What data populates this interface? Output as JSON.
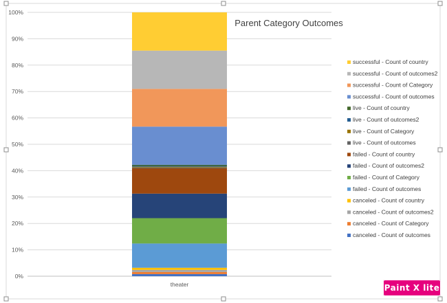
{
  "chart_data": {
    "type": "stacked-bar-100",
    "title": "Parent Category Outcomes",
    "categories": [
      "theater"
    ],
    "y_ticks": [
      "0%",
      "10%",
      "20%",
      "30%",
      "40%",
      "50%",
      "60%",
      "70%",
      "80%",
      "90%",
      "100%"
    ],
    "ylim": [
      0,
      100
    ],
    "grid": true,
    "legend_position": "right",
    "series": [
      {
        "name": "canceled - Count of outcomes",
        "values": [
          0.8
        ],
        "color": "#4472C4"
      },
      {
        "name": "canceled - Count of Category",
        "values": [
          0.8
        ],
        "color": "#ED7D31"
      },
      {
        "name": "canceled - Count of outcomes2",
        "values": [
          0.8
        ],
        "color": "#A5A5A5"
      },
      {
        "name": "canceled - Count of country",
        "values": [
          0.8
        ],
        "color": "#FFC000"
      },
      {
        "name": "failed - Count of outcomes",
        "values": [
          9.2
        ],
        "color": "#5B9BD5"
      },
      {
        "name": "failed - Count of Category",
        "values": [
          9.6
        ],
        "color": "#70AD47"
      },
      {
        "name": "failed - Count of outcomes2",
        "values": [
          9.3
        ],
        "color": "#264478"
      },
      {
        "name": "failed - Count of country",
        "values": [
          9.6
        ],
        "color": "#9E480E"
      },
      {
        "name": "live - Count of outcomes",
        "values": [
          0.3
        ],
        "color": "#636363"
      },
      {
        "name": "live - Count of Category",
        "values": [
          0.3
        ],
        "color": "#997300"
      },
      {
        "name": "live - Count of outcomes2",
        "values": [
          0.3
        ],
        "color": "#255E91"
      },
      {
        "name": "live - Count of country",
        "values": [
          0.4
        ],
        "color": "#43682B"
      },
      {
        "name": "successful - Count of outcomes",
        "values": [
          14.5
        ],
        "color": "#698ED0"
      },
      {
        "name": "successful - Count of Category",
        "values": [
          14.3
        ],
        "color": "#F1975A"
      },
      {
        "name": "successful - Count of outcomes2",
        "values": [
          14.5
        ],
        "color": "#B7B7B7"
      },
      {
        "name": "successful - Count of country",
        "values": [
          14.5
        ],
        "color": "#FFCD33"
      }
    ]
  },
  "watermark": {
    "text": "Paint X lite"
  }
}
